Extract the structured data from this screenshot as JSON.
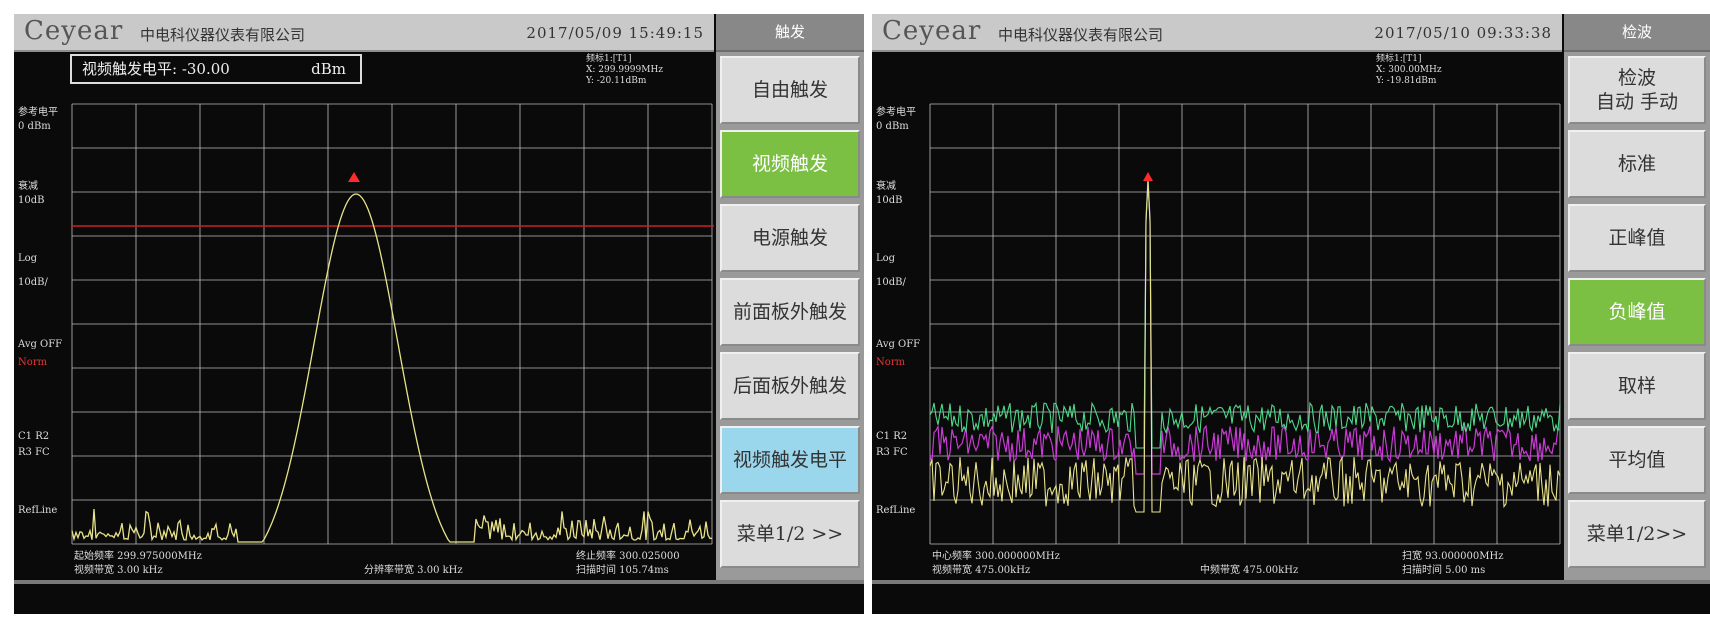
{
  "left": {
    "logo": "Ceyear",
    "company": "中电科仪器仪表有限公司",
    "datetime": "2017/05/09   15:49:15",
    "menu_title": "触发",
    "softkeys": [
      "自由触发",
      "视频触发",
      "电源触发",
      "前面板外触发",
      "后面板外触发",
      "视频触发电平",
      "菜单1/2 >>"
    ],
    "active_index": 1,
    "trigger_box": {
      "label": "视频触发电平: -30.00",
      "unit": "dBm"
    },
    "marker": [
      "频标1:[T1]",
      "X: 299.9999MHz",
      "Y: -20.11dBm"
    ],
    "side_labels": {
      "ref_label": "参考电平",
      "ref_value": "0  dBm",
      "atten_label": "衰减",
      "atten_value": "10dB",
      "scale_type": "Log",
      "scale_value": "10dB/",
      "avg": "Avg OFF",
      "avg_state": "Norm",
      "traces1": "C1  R2",
      "traces2": "R3  FC",
      "detector": "RefLine"
    },
    "footer": {
      "start_label": "起始频率 299.975000MHz",
      "rbw_label": "视频带宽 3.00  kHz",
      "res_label": "分辨率带宽 3.00  kHz",
      "stop_label": "终止频率 300.025000",
      "sweep_label": "扫描时间 105.74ms"
    },
    "colors": {
      "trace": "#e8e28a",
      "trigger_line": "#d02020",
      "marker": "#ff2a2a"
    }
  },
  "right": {
    "logo": "Ceyear",
    "company": "中电科仪器仪表有限公司",
    "datetime": "2017/05/10   09:33:38",
    "menu_title": "检波",
    "softkeys": [
      "检波\n自动 手动",
      "标准",
      "正峰值",
      "负峰值",
      "取样",
      "平均值",
      "菜单1/2>>"
    ],
    "active_index": 3,
    "marker": [
      "频标1:[T1]",
      "X: 300.00MHz",
      "Y: -19.81dBm"
    ],
    "side_labels": {
      "ref_label": "参考电平",
      "ref_value": "0  dBm",
      "atten_label": "衰减",
      "atten_value": "10dB",
      "scale_type": "Log",
      "scale_value": "10dB/",
      "avg": "Avg OFF",
      "avg_state": "Norm",
      "traces1": "C1  R2",
      "traces2": "R3  FC",
      "detector": "RefLine"
    },
    "footer": {
      "center_label": "中心频率 300.000000MHz",
      "rbw_label": "视频带宽 475.00kHz",
      "mid_label": "中频带宽 475.00kHz",
      "span_label": "扫宽 93.000000MHz",
      "sweep_label": "扫描时间 5.00  ms"
    },
    "colors": {
      "trace_yellow": "#e8e28a",
      "trace_magenta": "#c93ad6",
      "trace_green": "#4fd98c",
      "marker": "#ff2a2a"
    }
  }
}
